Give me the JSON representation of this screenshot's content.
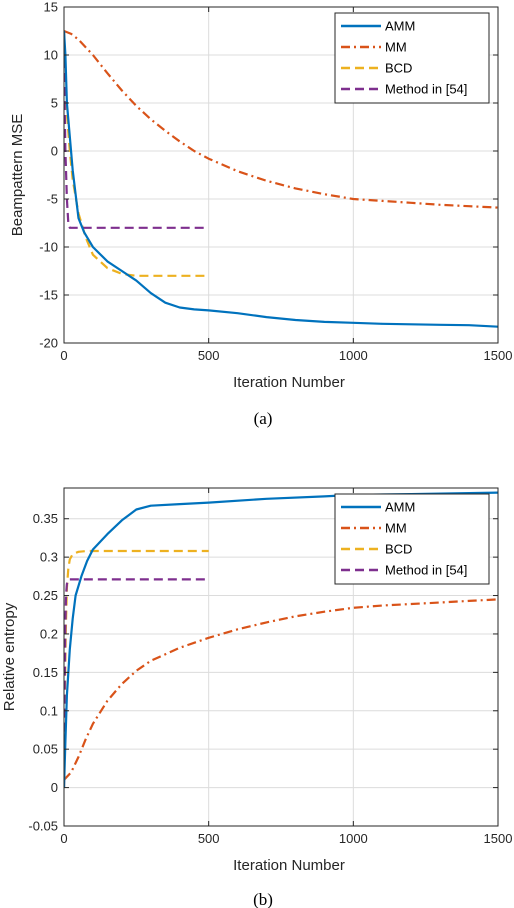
{
  "colors": {
    "amm": "#0072BD",
    "mm": "#D95319",
    "bcd": "#EDB120",
    "method54": "#7E2F8E",
    "grid": "#dcdcdc",
    "axis": "#262626"
  },
  "chart_data": [
    {
      "type": "line",
      "caption": "(a)",
      "xlabel": "Iteration Number",
      "ylabel": "Beampattern MSE",
      "xlim": [
        0,
        1500
      ],
      "ylim": [
        -20,
        15
      ],
      "xticks": [
        0,
        500,
        1000,
        1500
      ],
      "yticks": [
        -20,
        -15,
        -10,
        -5,
        0,
        5,
        10,
        15
      ],
      "grid": true,
      "legend_position": "top-right",
      "series": [
        {
          "name": "AMM",
          "style": "solid",
          "color_key": "amm",
          "x": [
            0,
            5,
            10,
            20,
            30,
            40,
            50,
            70,
            100,
            150,
            200,
            250,
            300,
            350,
            400,
            450,
            500,
            600,
            700,
            800,
            900,
            1000,
            1100,
            1200,
            1300,
            1400,
            1500
          ],
          "y": [
            12.5,
            10,
            5,
            1.5,
            -2,
            -4.5,
            -7,
            -8.5,
            -10,
            -11.5,
            -12.5,
            -13.5,
            -14.8,
            -15.8,
            -16.3,
            -16.5,
            -16.6,
            -16.9,
            -17.3,
            -17.6,
            -17.8,
            -17.9,
            -18.0,
            -18.05,
            -18.1,
            -18.15,
            -18.3
          ]
        },
        {
          "name": "MM",
          "style": "dashdot",
          "color_key": "mm",
          "x": [
            0,
            25,
            50,
            100,
            150,
            200,
            250,
            300,
            350,
            400,
            450,
            500,
            600,
            700,
            800,
            900,
            1000,
            1100,
            1200,
            1300,
            1400,
            1500
          ],
          "y": [
            12.5,
            12.2,
            11.6,
            10.0,
            8.1,
            6.3,
            4.7,
            3.3,
            2.1,
            1.0,
            0.0,
            -0.8,
            -2.1,
            -3.1,
            -3.9,
            -4.5,
            -5.0,
            -5.2,
            -5.4,
            -5.6,
            -5.75,
            -5.9
          ]
        },
        {
          "name": "BCD",
          "style": "dashed",
          "color_key": "bcd",
          "x": [
            0,
            5,
            10,
            20,
            30,
            50,
            75,
            100,
            150,
            200,
            250,
            300,
            500
          ],
          "y": [
            12.5,
            8,
            4,
            0,
            -3,
            -6.5,
            -9,
            -10.8,
            -12.2,
            -12.8,
            -13.0,
            -13.0,
            -13.0
          ]
        },
        {
          "name": "Method in [54]",
          "style": "dashed",
          "color_key": "method54",
          "x": [
            0,
            2,
            5,
            10,
            15,
            20,
            500
          ],
          "y": [
            12.5,
            5,
            0,
            -5,
            -7.5,
            -8.0,
            -8.0
          ]
        }
      ]
    },
    {
      "type": "line",
      "caption": "(b)",
      "xlabel": "Iteration Number",
      "ylabel": "Relative entropy",
      "xlim": [
        0,
        1500
      ],
      "ylim": [
        -0.05,
        0.39
      ],
      "xticks": [
        0,
        500,
        1000,
        1500
      ],
      "yticks": [
        -0.05,
        0,
        0.05,
        0.1,
        0.15,
        0.2,
        0.25,
        0.3,
        0.35
      ],
      "ytick_labels": [
        "-0.05",
        "0",
        "0.05",
        "0.1",
        "0.15",
        "0.2",
        "0.25",
        "0.3",
        "0.35"
      ],
      "grid": true,
      "legend_position": "top-right",
      "series": [
        {
          "name": "AMM",
          "style": "solid",
          "color_key": "amm",
          "x": [
            0,
            5,
            10,
            20,
            30,
            40,
            60,
            80,
            100,
            150,
            200,
            250,
            300,
            400,
            500,
            700,
            900,
            1000,
            1200,
            1500
          ],
          "y": [
            0.0,
            0.06,
            0.12,
            0.18,
            0.22,
            0.25,
            0.275,
            0.295,
            0.31,
            0.33,
            0.348,
            0.362,
            0.367,
            0.369,
            0.371,
            0.376,
            0.379,
            0.381,
            0.382,
            0.384
          ]
        },
        {
          "name": "MM",
          "style": "dashdot",
          "color_key": "mm",
          "x": [
            0,
            25,
            50,
            75,
            100,
            150,
            200,
            250,
            300,
            400,
            500,
            600,
            700,
            800,
            900,
            1000,
            1100,
            1200,
            1300,
            1400,
            1500
          ],
          "y": [
            0.01,
            0.02,
            0.04,
            0.063,
            0.083,
            0.113,
            0.135,
            0.152,
            0.165,
            0.182,
            0.195,
            0.206,
            0.215,
            0.223,
            0.229,
            0.234,
            0.237,
            0.239,
            0.241,
            0.243,
            0.245
          ]
        },
        {
          "name": "BCD",
          "style": "dashed",
          "color_key": "bcd",
          "x": [
            0,
            3,
            6,
            10,
            15,
            20,
            30,
            50,
            80,
            500
          ],
          "y": [
            0.0,
            0.12,
            0.2,
            0.26,
            0.285,
            0.297,
            0.304,
            0.307,
            0.308,
            0.308
          ]
        },
        {
          "name": "Method in [54]",
          "style": "dashed",
          "color_key": "method54",
          "x": [
            0,
            2,
            4,
            7,
            10,
            15,
            500
          ],
          "y": [
            0.0,
            0.12,
            0.2,
            0.25,
            0.265,
            0.271,
            0.271
          ]
        }
      ]
    }
  ]
}
